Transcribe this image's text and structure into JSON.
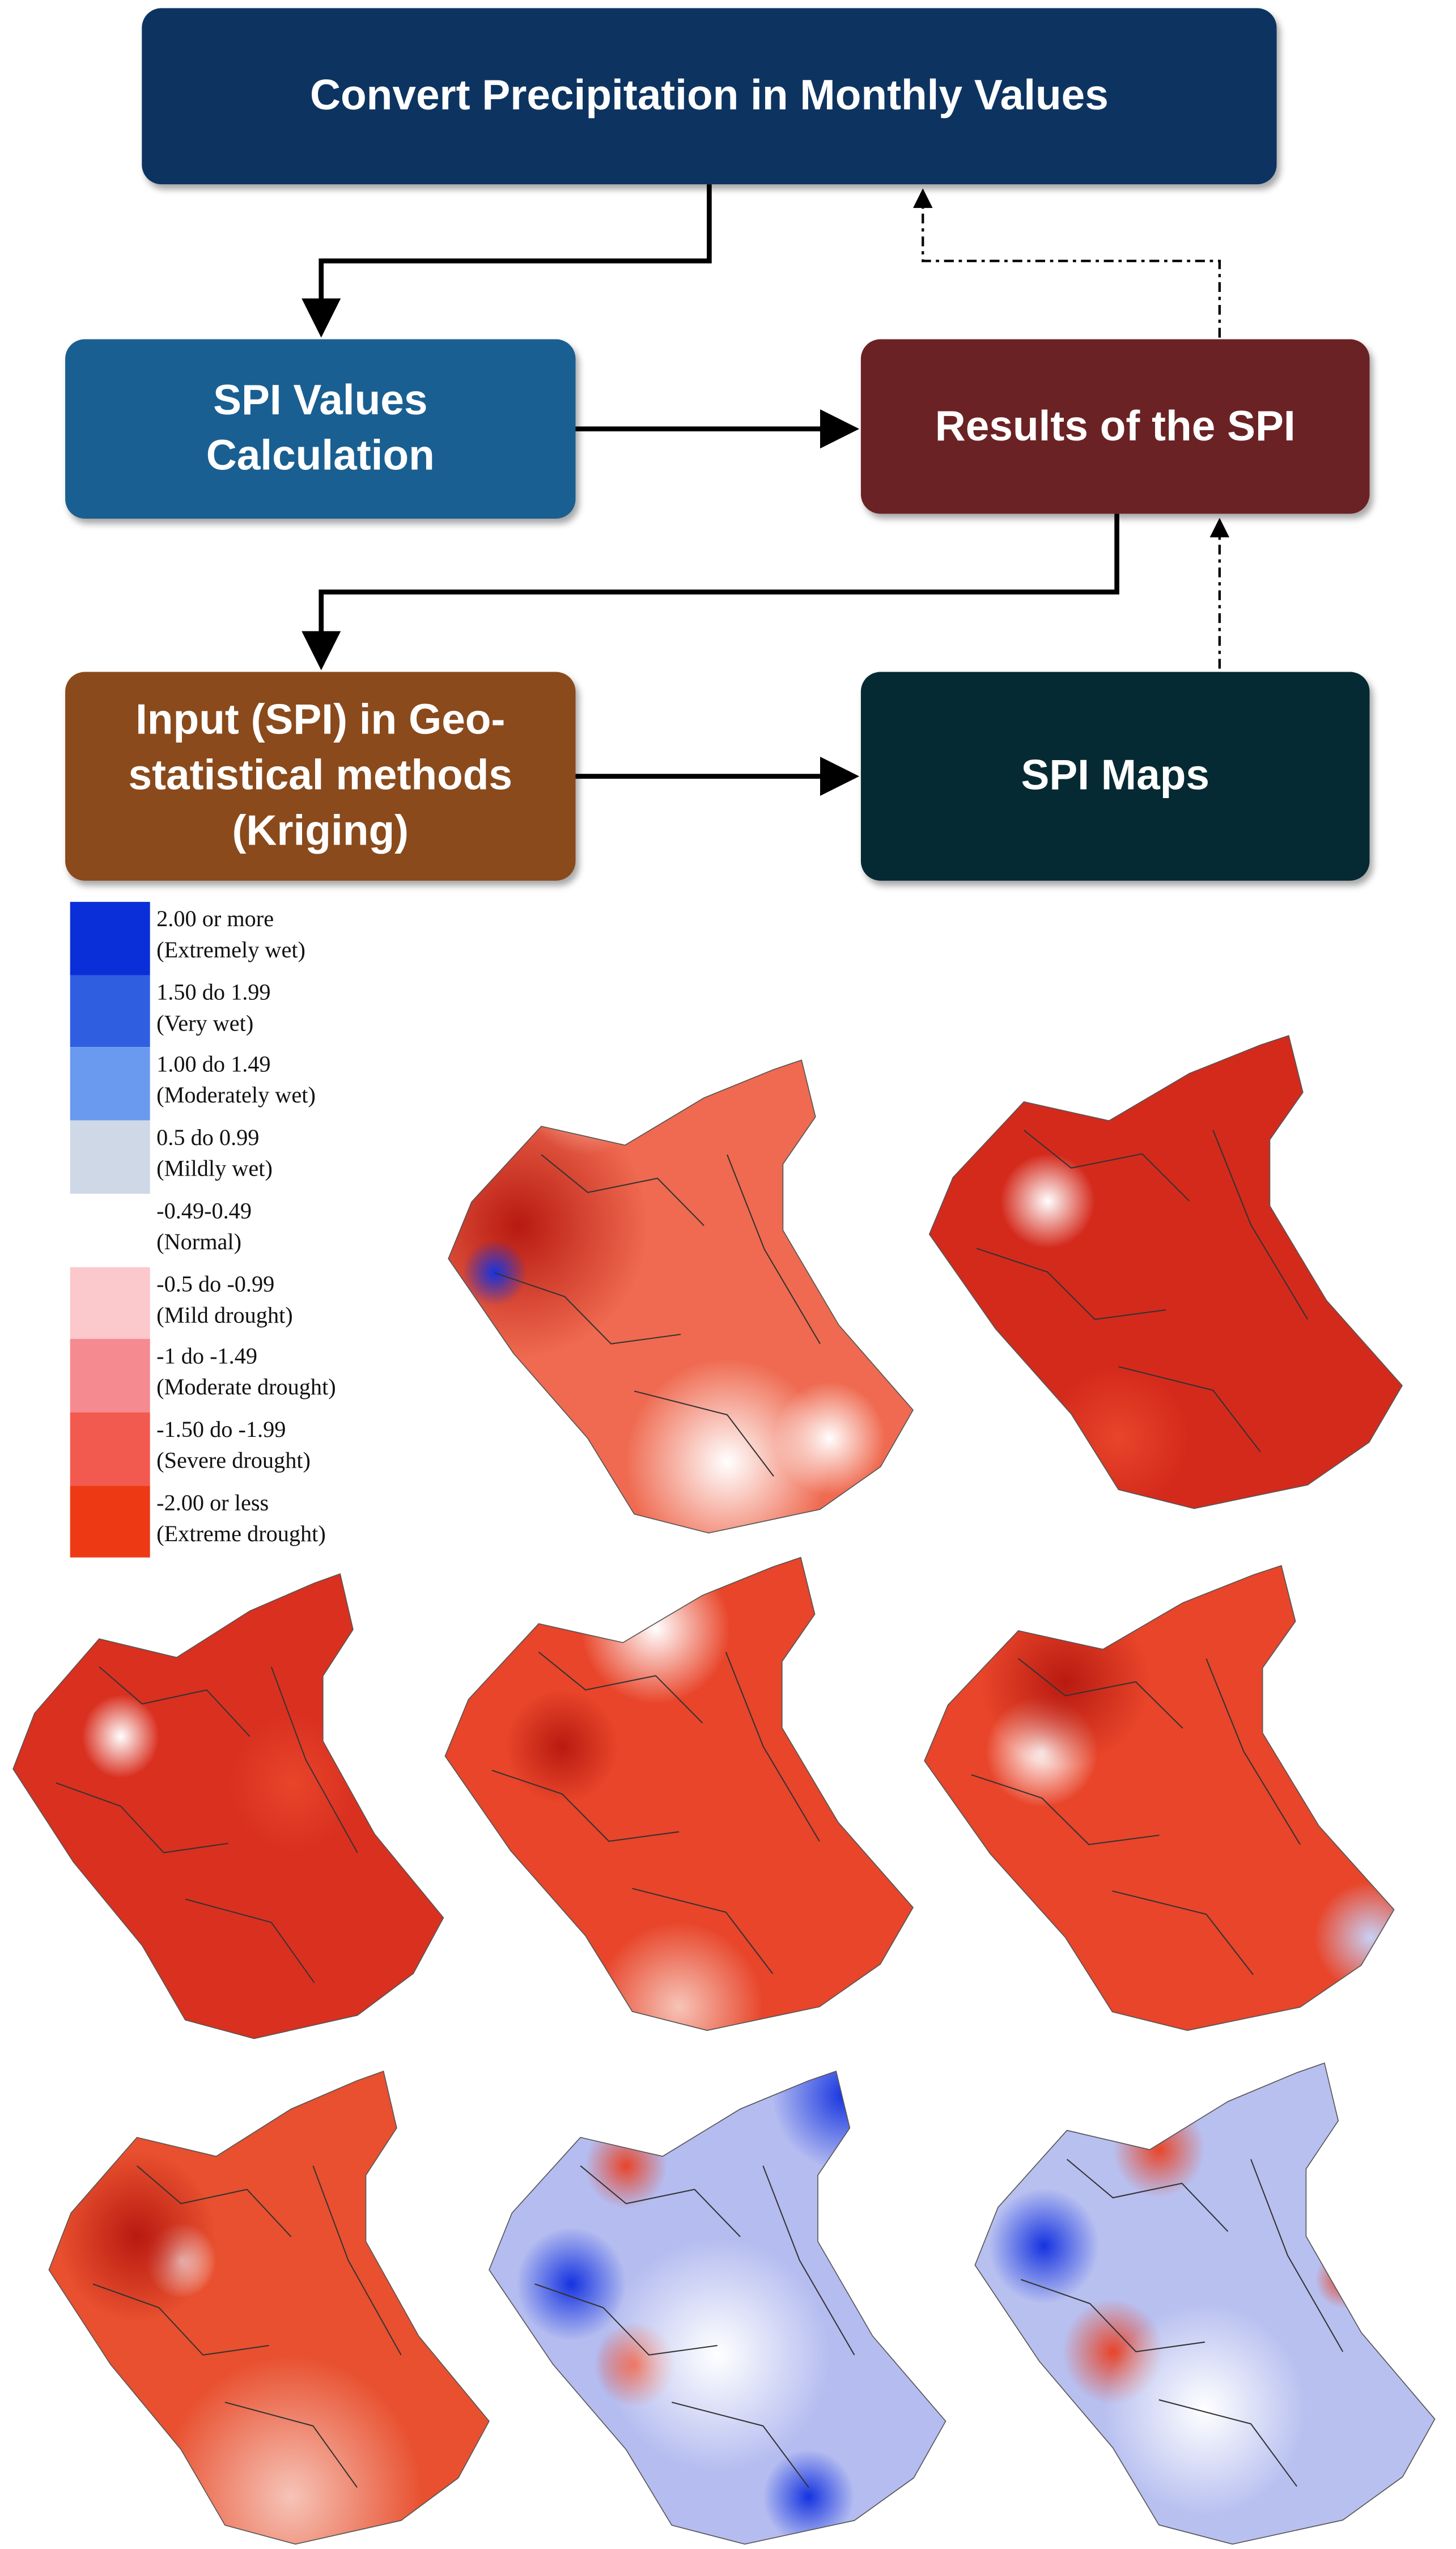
{
  "nodes": [
    {
      "label": "Convert Precipitation in Monthly Values",
      "color": "#0d3461"
    },
    {
      "label": "SPI Values Calculation",
      "color": "#1a5f91"
    },
    {
      "label": "Results of the SPI",
      "color": "#6b2224"
    },
    {
      "label": "Input (SPI) in Geo-statistical methods (Kriging)",
      "color": "#8a4a1c"
    },
    {
      "label": "SPI Maps",
      "color": "#062a33"
    }
  ],
  "legend": [
    {
      "range": "2.00 or more",
      "description": "(Extremely wet)",
      "color": "#0a2fd8"
    },
    {
      "range": "1.50 do 1.99",
      "description": "(Very wet)",
      "color": "#2f5ee0"
    },
    {
      "range": "1.00 do 1.49",
      "description": "(Moderately wet)",
      "color": "#6a9af0"
    },
    {
      "range": "0.5 do 0.99",
      "description": "(Mildly wet)",
      "color": "#cfd8e6"
    },
    {
      "range": "-0.49-0.49",
      "description": "(Normal)",
      "color": "#ffffff"
    },
    {
      "range": "-0.5 do -0.99",
      "description": "(Mild drought)",
      "color": "#fbc8cc"
    },
    {
      "range": "-1 do -1.49",
      "description": "(Moderate drought)",
      "color": "#f58a90"
    },
    {
      "range": "-1.50 do -1.99",
      "description": "(Severe drought)",
      "color": "#f25a50"
    },
    {
      "range": "-2.00 or less",
      "description": "(Extreme drought)",
      "color": "#ee3a14"
    }
  ]
}
